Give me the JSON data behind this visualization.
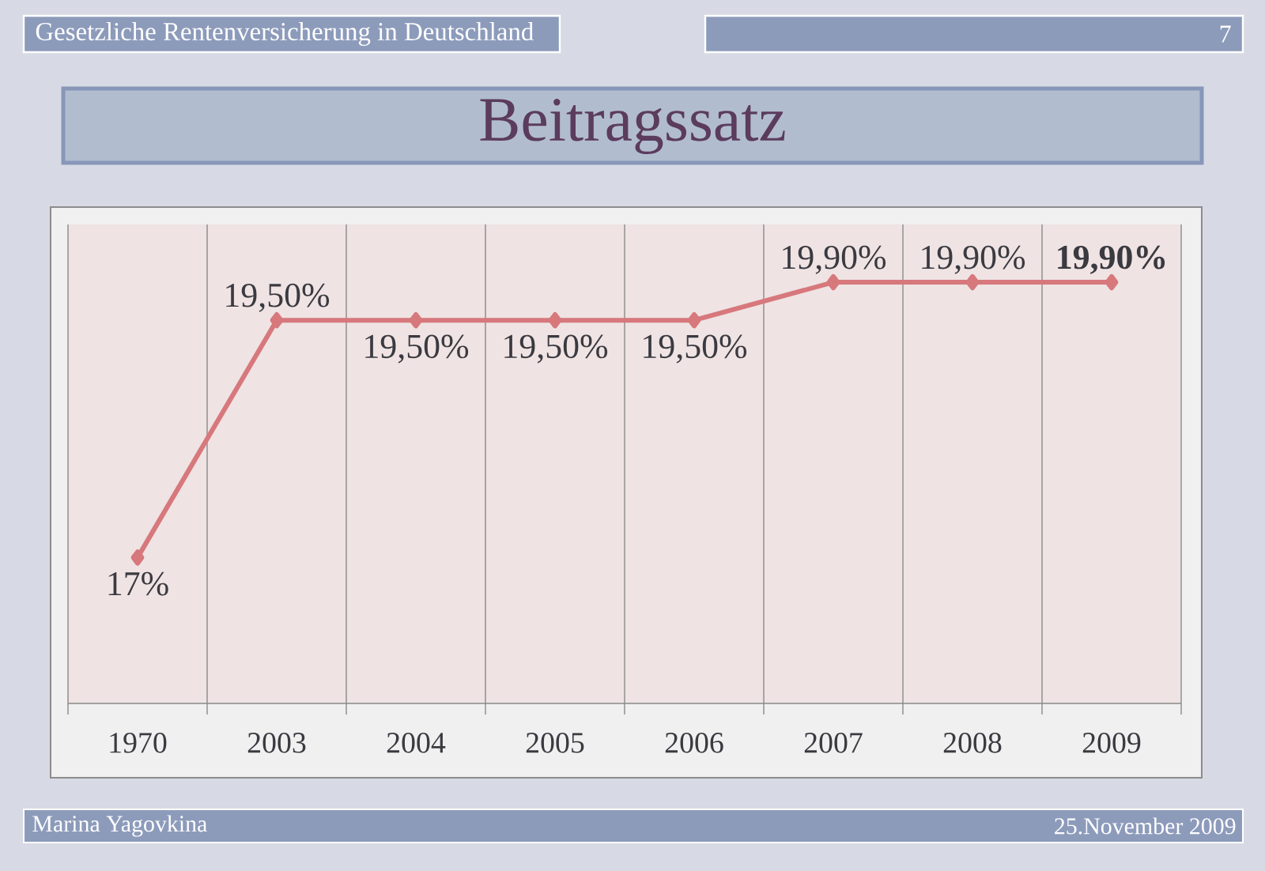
{
  "chart_data": {
    "type": "line",
    "title": "Beitragssatz",
    "categories": [
      "1970",
      "2003",
      "2004",
      "2005",
      "2006",
      "2007",
      "2008",
      "2009"
    ],
    "values": [
      17,
      19.5,
      19.5,
      19.5,
      19.5,
      19.9,
      19.9,
      19.9
    ],
    "value_labels": [
      "17%",
      "19,50%",
      "19,50%",
      "19,50%",
      "19,50%",
      "19,90%",
      "19,90%",
      "**19,90%**"
    ],
    "color": "#d7787c",
    "marker": "diamond",
    "line_style": "solid",
    "grid": "x",
    "annotations": [
      "Gesetzliche Rentenversicherung in Deutschland",
      "7",
      "Marina Yagovkina",
      "25.November 2009"
    ]
  }
}
